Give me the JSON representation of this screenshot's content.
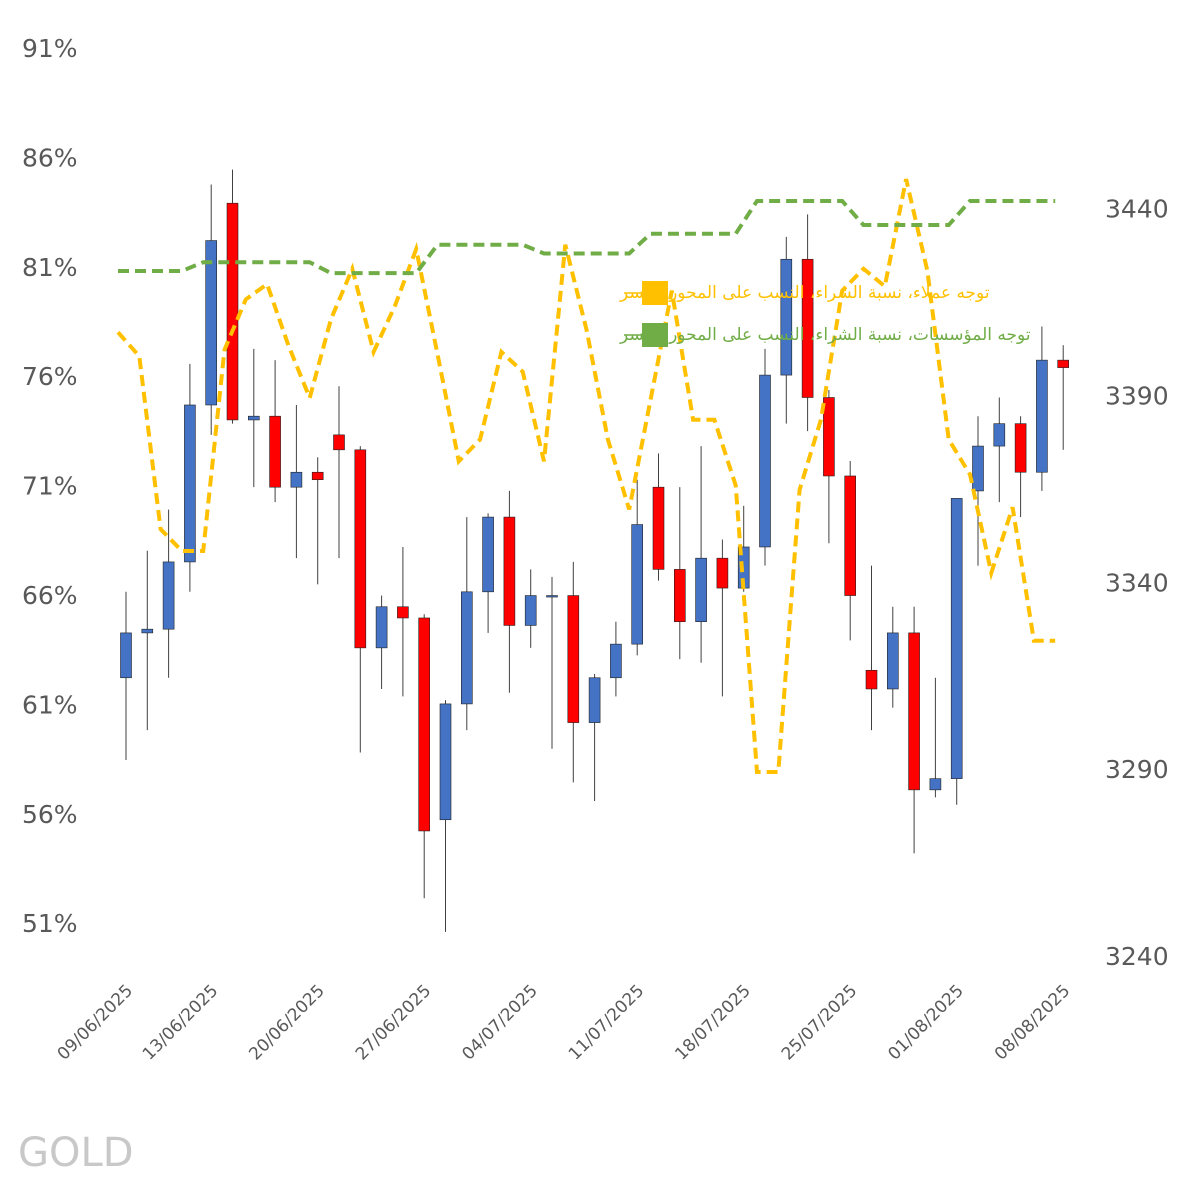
{
  "chart_data": {
    "type": "candlestick",
    "watermark": "GOLD",
    "categories": [
      "09/06/2025",
      null,
      null,
      null,
      "13/06/2025",
      null,
      null,
      null,
      null,
      "20/06/2025",
      null,
      null,
      null,
      null,
      "27/06/2025",
      null,
      null,
      null,
      null,
      "04/07/2025",
      null,
      null,
      null,
      null,
      "11/07/2025",
      null,
      null,
      null,
      null,
      "18/07/2025",
      null,
      null,
      null,
      null,
      "25/07/2025",
      null,
      null,
      null,
      null,
      "01/08/2025",
      null,
      null,
      null,
      null,
      "08/08/2025"
    ],
    "candles": {
      "axis": "y2",
      "up_color": "#4472c4",
      "down_color": "#ff0000",
      "open": [
        3315,
        3327,
        3328,
        3346,
        3388,
        3442,
        3384,
        3385,
        3366,
        3370,
        3380,
        3376,
        3323,
        3334,
        3331,
        3277,
        3308,
        3338,
        3358,
        3329,
        3337,
        3337,
        3303,
        3315,
        3324,
        3366,
        3344,
        3330,
        3347,
        3339,
        3350,
        3396,
        3427,
        3390,
        3369,
        3317,
        3312,
        3327,
        3285,
        3288,
        3365,
        3377,
        3383,
        3370,
        3400
      ],
      "high": [
        3338,
        3349,
        3360,
        3399,
        3447,
        3451,
        3403,
        3400,
        3388,
        3374,
        3393,
        3377,
        3337,
        3350,
        3332,
        3309,
        3358,
        3359,
        3365,
        3344,
        3342,
        3346,
        3316,
        3330,
        3368,
        3375,
        3366,
        3377,
        3352,
        3361,
        3403,
        3433,
        3439,
        3392,
        3373,
        3345,
        3334,
        3334,
        3315,
        3363,
        3385,
        3390,
        3385,
        3409,
        3404
      ],
      "low": [
        3293,
        3301,
        3315,
        3338,
        3380,
        3383,
        3366,
        3362,
        3347,
        3340,
        3347,
        3295,
        3312,
        3310,
        3256,
        3247,
        3301,
        3327,
        3311,
        3323,
        3296,
        3287,
        3282,
        3310,
        3321,
        3341,
        3320,
        3319,
        3310,
        3338,
        3345,
        3383,
        3381,
        3351,
        3325,
        3301,
        3307,
        3268,
        3283,
        3281,
        3345,
        3362,
        3358,
        3365,
        3376
      ],
      "close": [
        3327,
        3328,
        3346,
        3388,
        3432,
        3384,
        3385,
        3366,
        3370,
        3368,
        3376,
        3323,
        3334,
        3331,
        3274,
        3308,
        3338,
        3358,
        3329,
        3337,
        3337,
        3303,
        3315,
        3324,
        3356,
        3344,
        3330,
        3347,
        3339,
        3350,
        3396,
        3427,
        3390,
        3369,
        3337,
        3312,
        3327,
        3285,
        3288,
        3363,
        3377,
        3383,
        3370,
        3400,
        3398
      ]
    },
    "series": [
      {
        "name": "توجه عملاء، نسبة الشراء، النسب على المحور الأيسر",
        "color": "#ffc000",
        "values": [
          78.1,
          77.0,
          69.1,
          68.1,
          68.1,
          77.3,
          79.6,
          80.3,
          77.5,
          75.1,
          78.7,
          81.0,
          77.2,
          79.3,
          81.9,
          77.1,
          72.2,
          73.2,
          77.2,
          76.3,
          72.2,
          82.1,
          78.2,
          73.2,
          70.0,
          75.0,
          80.0,
          74.1,
          74.1,
          71.1,
          58.0,
          58.0,
          70.9,
          74.1,
          80.0,
          81.0,
          80.2,
          85.1,
          80.9,
          73.2,
          71.6,
          67.1,
          70.1,
          64.0,
          64.0
        ]
      },
      {
        "name": "توجه المؤسسات، نسبة الشراء، النسب على المحور الأيسر",
        "color": "#70ad47",
        "values": [
          80.9,
          80.9,
          80.9,
          80.9,
          81.3,
          81.3,
          81.3,
          81.3,
          81.3,
          81.3,
          80.8,
          80.8,
          80.8,
          80.8,
          80.8,
          82.1,
          82.1,
          82.1,
          82.1,
          82.1,
          81.7,
          81.7,
          81.7,
          81.7,
          81.7,
          82.6,
          82.6,
          82.6,
          82.6,
          82.6,
          84.1,
          84.1,
          84.1,
          84.1,
          84.1,
          83.0,
          83.0,
          83.0,
          83.0,
          83.0,
          84.1,
          84.1,
          84.1,
          84.1,
          84.1
        ]
      }
    ],
    "line_style": "dashed",
    "ylim": [
      49.5,
      91
    ],
    "yticks": [
      {
        "value": 51,
        "label": "51%"
      },
      {
        "value": 56,
        "label": "56%"
      },
      {
        "value": 61,
        "label": "61%"
      },
      {
        "value": 66,
        "label": "66%"
      },
      {
        "value": 71,
        "label": "71%"
      },
      {
        "value": 76,
        "label": "76%"
      },
      {
        "value": 81,
        "label": "81%"
      },
      {
        "value": 86,
        "label": "86%"
      },
      {
        "value": 91,
        "label": "91%"
      }
    ],
    "y2lim": [
      3240,
      3483
    ],
    "y2ticks": [
      3240,
      3290,
      3340,
      3390,
      3440
    ],
    "grid": false,
    "legend": "top-center"
  }
}
